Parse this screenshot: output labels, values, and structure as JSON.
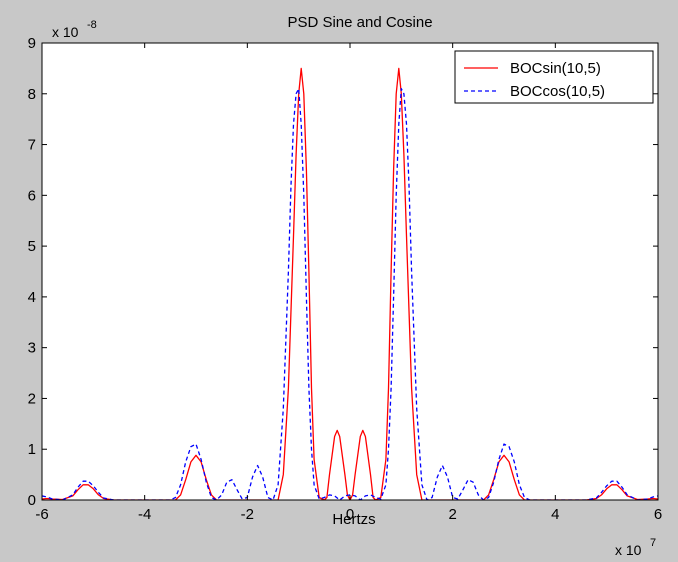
{
  "window": {
    "background": "#c8c8c8"
  },
  "chart_data": {
    "type": "line",
    "title": "PSD Sine and Cosine",
    "xlabel": "Hertzs",
    "ylabel": "",
    "x_exponent_label": "x 10",
    "x_exponent_power": "7",
    "y_exponent_label": "x 10",
    "y_exponent_power": "-8",
    "xlim": [
      -6,
      6
    ],
    "ylim": [
      0,
      9
    ],
    "xticks": [
      -6,
      -4,
      -2,
      0,
      2,
      4,
      6
    ],
    "yticks": [
      0,
      1,
      2,
      3,
      4,
      5,
      6,
      7,
      8,
      9
    ],
    "grid": false,
    "legend_position": "top-right",
    "x_units_note": "x values in units of 1e7 Hz; y values in units of 1e-8",
    "series": [
      {
        "name": "BOCsin(10,5)",
        "color": "#ff0000",
        "style": "solid",
        "x": [
          -6.0,
          -5.9,
          -5.8,
          -5.6,
          -5.4,
          -5.3,
          -5.2,
          -5.1,
          -5.0,
          -4.9,
          -4.8,
          -4.6,
          -3.4,
          -3.3,
          -3.2,
          -3.1,
          -3.0,
          -2.9,
          -2.8,
          -2.7,
          -2.6,
          -1.4,
          -1.3,
          -1.2,
          -1.1,
          -1.05,
          -1.0,
          -0.95,
          -0.9,
          -0.85,
          -0.8,
          -0.75,
          -0.7,
          -0.6,
          -0.5,
          -0.45,
          -0.4,
          -0.3,
          -0.25,
          -0.2,
          -0.1,
          -0.05,
          0.0,
          0.05,
          0.1,
          0.2,
          0.25,
          0.3,
          0.4,
          0.45,
          0.5,
          0.6,
          0.7,
          0.75,
          0.8,
          0.85,
          0.9,
          0.95,
          1.0,
          1.05,
          1.1,
          1.2,
          1.3,
          1.4,
          2.6,
          2.7,
          2.8,
          2.9,
          3.0,
          3.1,
          3.2,
          3.3,
          3.4,
          4.6,
          4.8,
          4.9,
          5.0,
          5.1,
          5.2,
          5.3,
          5.4,
          5.6,
          5.8,
          5.9,
          6.0
        ],
        "values": [
          0.02,
          0.03,
          0.02,
          0.01,
          0.08,
          0.2,
          0.3,
          0.3,
          0.22,
          0.1,
          0.03,
          0.0,
          0.0,
          0.1,
          0.4,
          0.75,
          0.88,
          0.75,
          0.4,
          0.1,
          0.0,
          0.0,
          0.5,
          2.2,
          5.2,
          6.8,
          8.0,
          8.5,
          8.0,
          6.5,
          4.5,
          2.2,
          0.8,
          0.05,
          0.0,
          0.05,
          0.5,
          1.25,
          1.37,
          1.25,
          0.5,
          0.1,
          0.0,
          0.1,
          0.5,
          1.25,
          1.37,
          1.25,
          0.5,
          0.05,
          0.0,
          0.05,
          0.8,
          2.2,
          4.5,
          6.5,
          8.0,
          8.5,
          8.0,
          6.8,
          5.2,
          2.2,
          0.5,
          0.0,
          0.0,
          0.1,
          0.4,
          0.75,
          0.88,
          0.75,
          0.4,
          0.1,
          0.0,
          0.0,
          0.03,
          0.1,
          0.22,
          0.3,
          0.3,
          0.2,
          0.08,
          0.01,
          0.02,
          0.03,
          0.02
        ]
      },
      {
        "name": "BOCcos(10,5)",
        "color": "#0000ff",
        "style": "dashed",
        "x": [
          -6.0,
          -5.9,
          -5.8,
          -5.6,
          -5.4,
          -5.3,
          -5.2,
          -5.1,
          -5.0,
          -4.9,
          -4.8,
          -4.6,
          -3.5,
          -3.4,
          -3.3,
          -3.2,
          -3.1,
          -3.0,
          -2.9,
          -2.8,
          -2.7,
          -2.6,
          -2.5,
          -2.4,
          -2.3,
          -2.2,
          -2.1,
          -2.0,
          -1.9,
          -1.8,
          -1.7,
          -1.6,
          -1.5,
          -1.4,
          -1.3,
          -1.2,
          -1.15,
          -1.1,
          -1.05,
          -1.0,
          -0.95,
          -0.9,
          -0.85,
          -0.8,
          -0.75,
          -0.7,
          -0.6,
          -0.5,
          -0.4,
          -0.3,
          -0.2,
          -0.1,
          0.0,
          0.1,
          0.2,
          0.3,
          0.4,
          0.5,
          0.6,
          0.7,
          0.75,
          0.8,
          0.85,
          0.9,
          0.95,
          1.0,
          1.05,
          1.1,
          1.15,
          1.2,
          1.3,
          1.4,
          1.5,
          1.6,
          1.7,
          1.8,
          1.9,
          2.0,
          2.1,
          2.2,
          2.3,
          2.4,
          2.5,
          2.6,
          2.7,
          2.8,
          2.9,
          3.0,
          3.1,
          3.2,
          3.3,
          3.4,
          3.5,
          4.6,
          4.8,
          4.9,
          5.0,
          5.1,
          5.2,
          5.3,
          5.4,
          5.6,
          5.8,
          5.9,
          6.0
        ],
        "values": [
          0.08,
          0.06,
          0.02,
          0.0,
          0.1,
          0.25,
          0.37,
          0.37,
          0.28,
          0.15,
          0.04,
          0.0,
          0.0,
          0.05,
          0.3,
          0.75,
          1.05,
          1.1,
          0.8,
          0.35,
          0.05,
          0.0,
          0.1,
          0.35,
          0.4,
          0.2,
          0.02,
          0.05,
          0.45,
          0.68,
          0.45,
          0.05,
          0.0,
          0.3,
          1.8,
          4.5,
          6.2,
          7.4,
          8.0,
          8.1,
          7.4,
          6.0,
          4.0,
          2.2,
          1.0,
          0.3,
          0.02,
          0.05,
          0.1,
          0.08,
          0.0,
          0.08,
          0.1,
          0.08,
          0.0,
          0.08,
          0.1,
          0.05,
          0.02,
          0.3,
          1.0,
          2.2,
          4.0,
          6.0,
          7.4,
          8.1,
          8.0,
          7.4,
          6.2,
          4.5,
          1.8,
          0.3,
          0.0,
          0.05,
          0.45,
          0.68,
          0.45,
          0.05,
          0.02,
          0.2,
          0.4,
          0.35,
          0.1,
          0.0,
          0.05,
          0.35,
          0.8,
          1.1,
          1.05,
          0.75,
          0.3,
          0.05,
          0.0,
          0.0,
          0.04,
          0.15,
          0.28,
          0.37,
          0.37,
          0.25,
          0.1,
          0.0,
          0.02,
          0.06,
          0.08
        ]
      }
    ]
  }
}
